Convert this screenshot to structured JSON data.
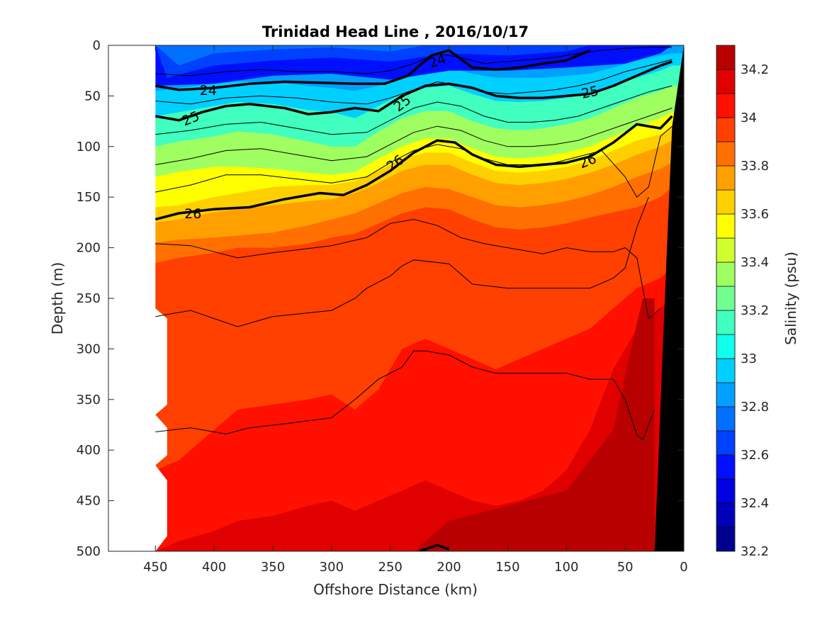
{
  "chart_data": {
    "type": "heatmap",
    "title": "Trinidad Head Line , 2016/10/17",
    "xlabel": "Offshore Distance (km)",
    "ylabel": "Depth (m)",
    "xlim": [
      490,
      0
    ],
    "ylim": [
      500,
      0
    ],
    "x_direction": "reversed",
    "y_direction": "depth increases downward",
    "x_ticks": [
      "450",
      "400",
      "350",
      "300",
      "250",
      "200",
      "150",
      "100",
      "50",
      "0"
    ],
    "y_ticks": [
      "0",
      "50",
      "100",
      "150",
      "200",
      "250",
      "300",
      "350",
      "400",
      "450",
      "500"
    ],
    "colorbar": {
      "label": "Salinity (psu)",
      "range": [
        32.2,
        34.3
      ],
      "ticks": [
        "34.2",
        "34",
        "33.8",
        "33.6",
        "33.4",
        "33.2",
        "33",
        "32.8",
        "32.6",
        "32.4",
        "32.2"
      ],
      "levels": [
        32.2,
        32.3,
        32.4,
        32.5,
        32.6,
        32.7,
        32.8,
        32.9,
        33.0,
        33.1,
        33.2,
        33.3,
        33.4,
        33.5,
        33.6,
        33.7,
        33.8,
        33.9,
        34.0,
        34.1,
        34.2,
        34.3
      ],
      "colors": [
        "#00008f",
        "#0000b8",
        "#0000e0",
        "#0010ff",
        "#0040ff",
        "#0070ff",
        "#00a0ff",
        "#00d0ff",
        "#10ffef",
        "#40ffbf",
        "#70ff8f",
        "#a0ff60",
        "#d0ff30",
        "#ffff00",
        "#ffd000",
        "#ffa000",
        "#ff7000",
        "#ff4000",
        "#ff1000",
        "#e00000",
        "#b80000"
      ]
    },
    "salinity_layers": [
      {
        "salinity": 32.5,
        "top": [
          [
            0,
            450
          ],
          [
            0,
            10
          ]
        ],
        "bottom": [
          [
            0,
            450
          ],
          [
            40,
            450
          ],
          [
            38,
            400
          ],
          [
            30,
            350
          ],
          [
            28,
            300
          ],
          [
            34,
            250
          ],
          [
            25,
            200
          ],
          [
            25,
            150
          ],
          [
            22,
            100
          ],
          [
            18,
            50
          ],
          [
            8,
            20
          ],
          [
            0,
            10
          ]
        ]
      },
      {
        "salinity": 32.6,
        "top": [
          [
            0,
            450
          ],
          [
            0,
            10
          ]
        ],
        "bottom": [
          [
            0,
            450
          ],
          [
            32,
            440
          ],
          [
            20,
            400
          ],
          [
            15,
            350
          ],
          [
            12,
            300
          ],
          [
            16,
            250
          ],
          [
            8,
            200
          ],
          [
            10,
            150
          ],
          [
            6,
            100
          ],
          [
            0,
            80
          ]
        ]
      },
      {
        "salinity": 32.7,
        "top": [
          [
            0,
            450
          ],
          [
            0,
            10
          ]
        ],
        "bottom": [
          [
            0,
            450
          ],
          [
            20,
            430
          ],
          [
            8,
            400
          ],
          [
            4,
            350
          ],
          [
            2,
            300
          ],
          [
            6,
            250
          ],
          [
            0,
            220
          ]
        ]
      }
    ],
    "bands_depth_by_x": {
      "x": [
        450,
        430,
        400,
        380,
        350,
        320,
        300,
        280,
        260,
        240,
        220,
        200,
        180,
        160,
        140,
        120,
        100,
        80,
        60,
        40,
        20,
        10
      ],
      "layers": [
        {
          "salinity": 32.9,
          "depth": [
            45,
            42,
            38,
            36,
            36,
            40,
            42,
            45,
            40,
            30,
            25,
            22,
            28,
            32,
            32,
            32,
            30,
            28,
            22,
            15,
            10,
            8
          ]
        },
        {
          "salinity": 33.1,
          "depth": [
            70,
            66,
            60,
            56,
            58,
            64,
            66,
            72,
            60,
            48,
            42,
            40,
            48,
            55,
            56,
            55,
            52,
            48,
            40,
            32,
            25,
            20
          ]
        },
        {
          "salinity": 33.3,
          "depth": [
            100,
            95,
            90,
            85,
            88,
            95,
            100,
            100,
            85,
            72,
            65,
            65,
            75,
            82,
            84,
            82,
            78,
            72,
            62,
            52,
            45,
            40
          ]
        },
        {
          "salinity": 33.5,
          "depth": [
            130,
            125,
            120,
            120,
            122,
            126,
            128,
            125,
            112,
            100,
            92,
            92,
            102,
            110,
            112,
            110,
            106,
            100,
            90,
            80,
            72,
            66
          ]
        },
        {
          "salinity": 33.6,
          "depth": [
            160,
            158,
            150,
            146,
            140,
            138,
            138,
            134,
            124,
            112,
            106,
            106,
            116,
            124,
            126,
            124,
            120,
            114,
            104,
            94,
            88,
            80
          ]
        },
        {
          "salinity": 33.7,
          "depth": [
            175,
            172,
            165,
            162,
            158,
            154,
            152,
            146,
            136,
            124,
            118,
            118,
            128,
            136,
            138,
            136,
            132,
            126,
            118,
            108,
            100,
            94
          ]
        },
        {
          "salinity": 33.8,
          "depth": [
            195,
            192,
            190,
            188,
            185,
            178,
            172,
            166,
            156,
            146,
            140,
            142,
            150,
            158,
            160,
            158,
            154,
            148,
            140,
            130,
            122,
            116
          ]
        },
        {
          "salinity": 33.9,
          "depth": [
            215,
            210,
            205,
            200,
            200,
            196,
            190,
            186,
            176,
            166,
            160,
            162,
            172,
            180,
            182,
            180,
            176,
            170,
            165,
            160,
            150,
            140
          ]
        },
        {
          "salinity": 34.0,
          "depth": [
            420,
            410,
            380,
            360,
            355,
            350,
            345,
            360,
            340,
            300,
            290,
            300,
            310,
            320,
            310,
            300,
            290,
            280,
            260,
            240,
            230,
            220
          ]
        },
        {
          "salinity": 34.1,
          "depth": [
            500,
            490,
            480,
            470,
            465,
            455,
            450,
            460,
            450,
            440,
            430,
            440,
            450,
            455,
            450,
            440,
            420,
            380,
            320,
            280,
            260,
            250
          ]
        }
      ]
    },
    "density_contours": [
      {
        "label": "24",
        "x": [
          450,
          430,
          400,
          370,
          340,
          310,
          280,
          255,
          235,
          215,
          200,
          180,
          160,
          140,
          120,
          100,
          80
        ],
        "depth": [
          40,
          44,
          42,
          38,
          36,
          37,
          38,
          38,
          30,
          10,
          5,
          22,
          24,
          22,
          18,
          15,
          5
        ]
      },
      {
        "label": "25",
        "x": [
          450,
          430,
          410,
          390,
          370,
          340,
          320,
          300,
          280,
          260,
          240,
          220,
          200,
          180,
          160,
          140,
          120,
          100,
          80,
          60,
          40,
          20,
          10
        ],
        "depth": [
          70,
          74,
          66,
          60,
          58,
          62,
          68,
          66,
          62,
          65,
          50,
          40,
          38,
          42,
          50,
          52,
          52,
          50,
          48,
          40,
          30,
          20,
          16
        ]
      },
      {
        "label": "26",
        "x": [
          450,
          430,
          400,
          370,
          340,
          310,
          290,
          270,
          250,
          230,
          210,
          195,
          180,
          160,
          140,
          120,
          100,
          80,
          60,
          40,
          20,
          10
        ],
        "depth": [
          172,
          166,
          162,
          160,
          152,
          146,
          148,
          138,
          124,
          106,
          94,
          96,
          108,
          118,
          120,
          118,
          116,
          110,
          96,
          78,
          82,
          70
        ]
      },
      {
        "label": "",
        "x": [
          225,
          210,
          200
        ],
        "depth": [
          500,
          494,
          498
        ]
      }
    ],
    "thin_contours": [
      {
        "x": [
          450,
          420,
          390,
          360,
          330,
          300,
          270,
          250,
          230,
          210,
          190,
          170,
          150,
          130,
          110,
          90,
          70,
          50,
          30,
          10
        ],
        "depth": [
          28,
          30,
          26,
          24,
          26,
          26,
          28,
          25,
          18,
          8,
          12,
          18,
          16,
          14,
          12,
          8,
          5,
          3,
          2,
          2
        ]
      },
      {
        "x": [
          450,
          420,
          390,
          360,
          330,
          300,
          270,
          250,
          230,
          210,
          190,
          170,
          150,
          130,
          110,
          90,
          70,
          50,
          30,
          10
        ],
        "depth": [
          55,
          58,
          52,
          50,
          52,
          56,
          58,
          52,
          44,
          36,
          40,
          46,
          48,
          46,
          44,
          40,
          34,
          26,
          20,
          14
        ]
      },
      {
        "x": [
          450,
          420,
          390,
          360,
          330,
          300,
          270,
          250,
          230,
          210,
          190,
          170,
          150,
          130,
          110,
          90,
          70,
          50,
          30,
          10
        ],
        "depth": [
          88,
          84,
          78,
          76,
          82,
          88,
          86,
          74,
          62,
          56,
          60,
          70,
          76,
          76,
          74,
          70,
          62,
          54,
          46,
          40
        ]
      },
      {
        "x": [
          450,
          420,
          390,
          360,
          330,
          300,
          270,
          250,
          230,
          210,
          190,
          170,
          150,
          130,
          110,
          90,
          70,
          50,
          30,
          10
        ],
        "depth": [
          118,
          112,
          104,
          102,
          108,
          114,
          110,
          98,
          86,
          80,
          84,
          94,
          100,
          100,
          98,
          94,
          86,
          78,
          70,
          62
        ]
      },
      {
        "x": [
          450,
          420,
          390,
          360,
          330,
          300,
          270,
          250,
          230,
          210,
          190,
          170,
          150,
          130,
          110,
          90,
          70,
          50,
          40,
          30,
          20,
          10
        ],
        "depth": [
          145,
          138,
          128,
          128,
          132,
          136,
          130,
          116,
          104,
          98,
          102,
          112,
          118,
          118,
          116,
          110,
          104,
          130,
          150,
          140,
          90,
          80
        ]
      },
      {
        "x": [
          450,
          420,
          400,
          380,
          350,
          300,
          270,
          250,
          230,
          210,
          190,
          170,
          150,
          120,
          100,
          80,
          60,
          50,
          40,
          30,
          20
        ],
        "depth": [
          196,
          198,
          204,
          210,
          205,
          198,
          190,
          176,
          172,
          178,
          190,
          196,
          200,
          206,
          200,
          204,
          204,
          200,
          210,
          270,
          260
        ]
      },
      {
        "x": [
          450,
          420,
          380,
          350,
          300,
          280,
          270,
          250,
          240,
          230,
          200,
          180,
          150,
          120,
          100,
          80,
          60,
          50,
          40,
          30
        ],
        "depth": [
          268,
          262,
          278,
          268,
          262,
          250,
          240,
          228,
          218,
          212,
          216,
          236,
          240,
          240,
          240,
          240,
          230,
          220,
          180,
          150
        ]
      },
      {
        "x": [
          450,
          420,
          390,
          370,
          340,
          300,
          280,
          260,
          240,
          230,
          220,
          200,
          180,
          160,
          140,
          120,
          100,
          80,
          60,
          50,
          40,
          35,
          25
        ],
        "depth": [
          382,
          378,
          384,
          378,
          374,
          368,
          350,
          330,
          318,
          302,
          302,
          306,
          318,
          324,
          324,
          324,
          324,
          330,
          330,
          350,
          385,
          390,
          360
        ]
      }
    ],
    "no_data_region": {
      "x_from": 490,
      "x_to": 440,
      "description": "blank area offshore"
    },
    "seafloor": {
      "x": [
        25,
        0,
        0,
        10
      ],
      "depth": [
        500,
        500,
        0,
        80
      ]
    }
  }
}
